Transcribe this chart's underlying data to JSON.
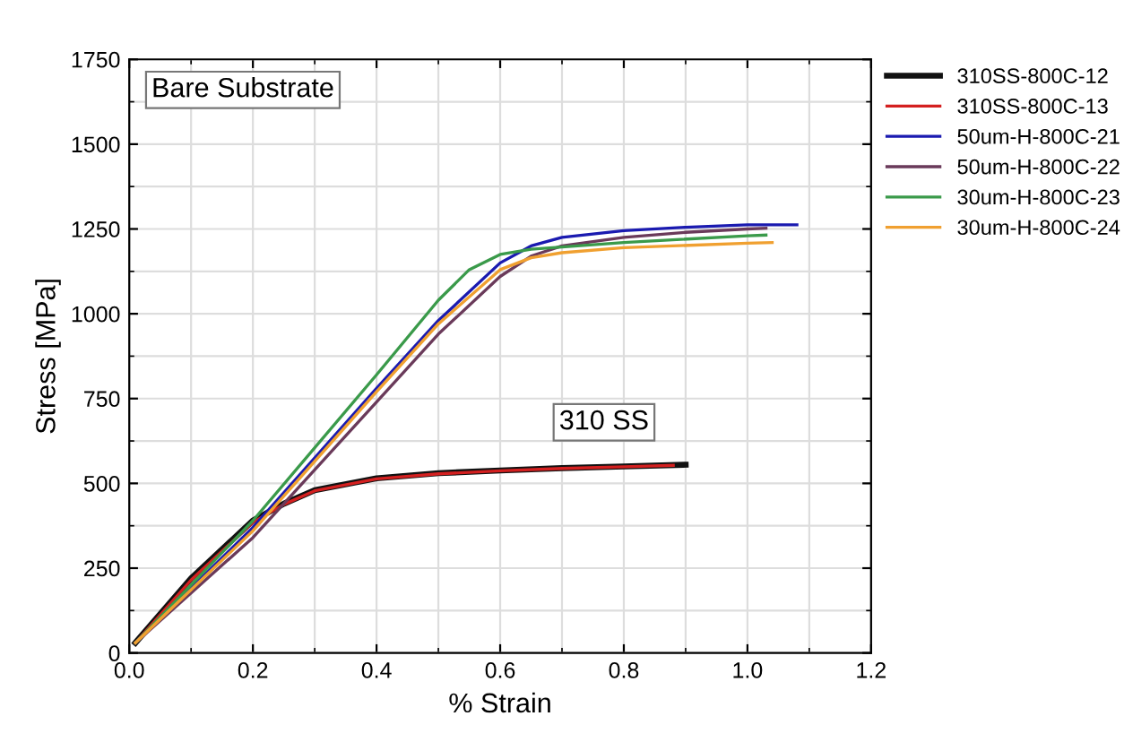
{
  "chart_data": {
    "type": "line",
    "xlabel": "% Strain",
    "ylabel": "Stress [MPa]",
    "xlim": [
      0,
      1.2
    ],
    "xticks": [
      {
        "value": 0,
        "label": "0.0"
      },
      0.2,
      0.4,
      0.6,
      0.8,
      {
        "value": 1,
        "label": "1.0"
      },
      {
        "value": 1.2,
        "label": "1.2"
      }
    ],
    "ylim": [
      0,
      1750
    ],
    "yticks": [
      0,
      250,
      500,
      750,
      1000,
      1250,
      1500,
      1750
    ],
    "grid": true,
    "legend": "right",
    "marker": "none",
    "line_style": "solid",
    "annotations": [
      "Bare Substrate",
      "310 SS"
    ],
    "series": [
      {
        "name": "310SS-800C-12",
        "color": "#111111",
        "x": [
          0.01,
          0.1,
          0.2,
          0.25,
          0.3,
          0.4,
          0.5,
          0.6,
          0.7,
          0.8,
          0.9
        ],
        "values": [
          30,
          220,
          390,
          440,
          480,
          515,
          530,
          538,
          545,
          550,
          555
        ]
      },
      {
        "name": "310SS-800C-13",
        "color": "#d42020",
        "x": [
          0.01,
          0.1,
          0.2,
          0.25,
          0.3,
          0.4,
          0.5,
          0.6,
          0.7,
          0.8,
          0.88
        ],
        "values": [
          30,
          215,
          385,
          438,
          478,
          513,
          528,
          537,
          544,
          549,
          553
        ]
      },
      {
        "name": "50um-H-800C-21",
        "color": "#1a1ab0",
        "x": [
          0.01,
          0.2,
          0.4,
          0.5,
          0.6,
          0.65,
          0.7,
          0.8,
          0.9,
          1.0,
          1.08
        ],
        "values": [
          30,
          370,
          780,
          980,
          1150,
          1200,
          1225,
          1245,
          1255,
          1262,
          1262
        ]
      },
      {
        "name": "50um-H-800C-22",
        "color": "#6a3a5a",
        "x": [
          0.01,
          0.2,
          0.4,
          0.5,
          0.6,
          0.65,
          0.7,
          0.8,
          0.9,
          1.0,
          1.03
        ],
        "values": [
          30,
          340,
          740,
          940,
          1110,
          1170,
          1200,
          1225,
          1240,
          1250,
          1252
        ]
      },
      {
        "name": "30um-H-800C-23",
        "color": "#3a9a4a",
        "x": [
          0.01,
          0.2,
          0.4,
          0.5,
          0.55,
          0.6,
          0.65,
          0.8,
          1.0,
          1.03
        ],
        "values": [
          30,
          390,
          820,
          1040,
          1130,
          1175,
          1190,
          1210,
          1230,
          1232
        ]
      },
      {
        "name": "30um-H-800C-24",
        "color": "#f0a030",
        "x": [
          0.01,
          0.2,
          0.4,
          0.5,
          0.6,
          0.65,
          0.7,
          0.8,
          1.0,
          1.04
        ],
        "values": [
          30,
          360,
          770,
          970,
          1130,
          1165,
          1180,
          1195,
          1208,
          1210
        ]
      }
    ]
  }
}
